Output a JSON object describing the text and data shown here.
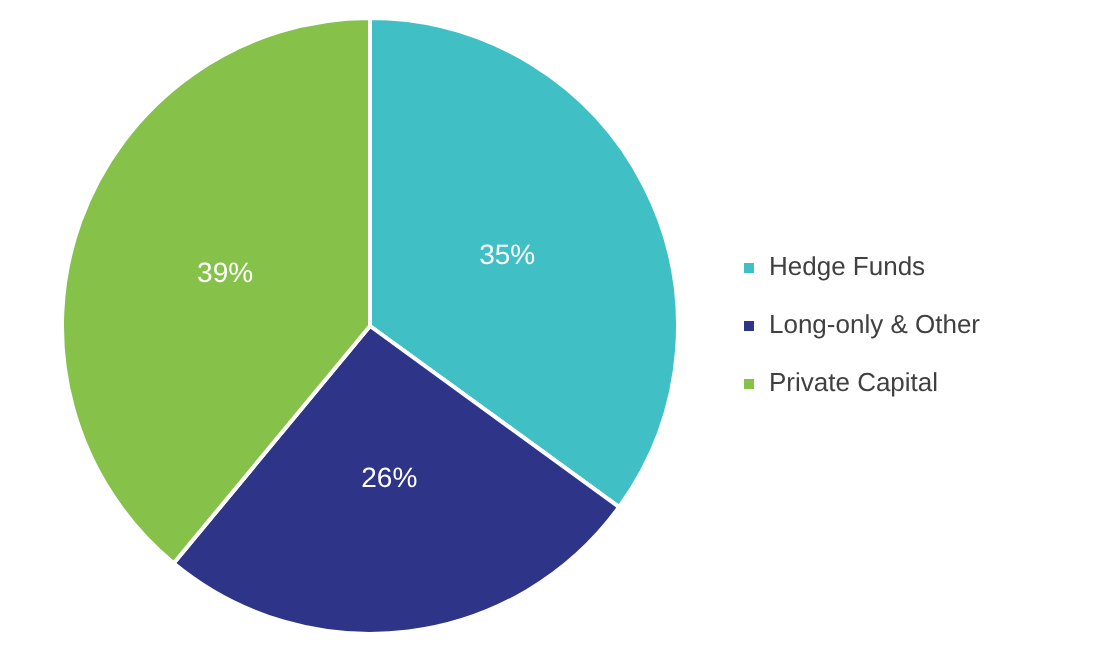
{
  "chart_data": {
    "type": "pie",
    "categories": [
      "Hedge Funds",
      "Long-only & Other",
      "Private Capital"
    ],
    "values": [
      35,
      26,
      39
    ],
    "colors": [
      "#40bfc4",
      "#2e3589",
      "#86c14a"
    ],
    "value_labels": [
      "35%",
      "26%",
      "39%"
    ],
    "legend": "right"
  }
}
